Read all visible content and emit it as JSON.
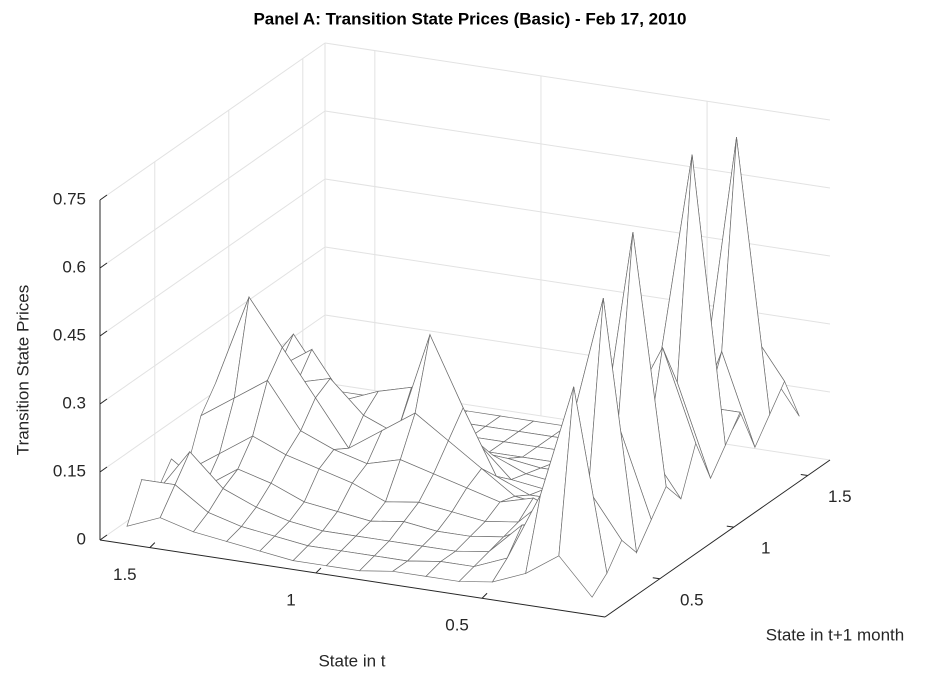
{
  "chart_data": {
    "type": "surface",
    "title": "Panel A:  Transition State Prices (Basic) - Feb 17, 2010",
    "xlabel": "State in t",
    "ylabel": "State in t+1 month",
    "zlabel": "Transition State Prices",
    "x": [
      0.2,
      0.3,
      0.4,
      0.5,
      0.6,
      0.7,
      0.8,
      0.9,
      1.0,
      1.1,
      1.2,
      1.3,
      1.4,
      1.5,
      1.6
    ],
    "y": [
      0.2,
      0.3,
      0.4,
      0.5,
      0.6,
      0.7,
      0.8,
      0.9,
      1.0,
      1.1,
      1.2,
      1.3,
      1.4,
      1.5,
      1.6
    ],
    "z": [
      [
        0.02,
        0.05,
        0.1,
        0.05,
        0.1,
        0.15,
        0.1,
        0.2,
        0.1,
        0.15,
        0.2,
        0.1,
        0.15,
        0.2,
        0.1
      ],
      [
        0.1,
        0.45,
        0.2,
        0.6,
        0.3,
        0.7,
        0.2,
        0.4,
        0.3,
        0.78,
        0.2,
        0.3,
        0.75,
        0.3,
        0.2
      ],
      [
        0.05,
        0.2,
        0.1,
        0.3,
        0.15,
        0.2,
        0.1,
        0.25,
        0.1,
        0.3,
        0.15,
        0.1,
        0.2,
        0.1,
        0.05
      ],
      [
        0.02,
        0.05,
        0.1,
        0.08,
        0.12,
        0.05,
        0.1,
        0.05,
        0.06,
        0.05,
        0.04,
        0.03,
        0.02,
        0.02,
        0.01
      ],
      [
        0.01,
        0.02,
        0.03,
        0.04,
        0.05,
        0.08,
        0.04,
        0.03,
        0.02,
        0.02,
        0.01,
        0.01,
        0.01,
        0,
        0
      ],
      [
        0.01,
        0.02,
        0.02,
        0.03,
        0.04,
        0.06,
        0.05,
        0.03,
        0.02,
        0.01,
        0.01,
        0,
        0,
        0,
        0
      ],
      [
        0.01,
        0.01,
        0.02,
        0.03,
        0.05,
        0.08,
        0.1,
        0.06,
        0.03,
        0.02,
        0.01,
        0,
        0,
        0,
        0
      ],
      [
        0,
        0.01,
        0.02,
        0.04,
        0.06,
        0.1,
        0.15,
        0.2,
        0.1,
        0.05,
        0.02,
        0,
        0,
        0,
        0
      ],
      [
        0,
        0.01,
        0.02,
        0.03,
        0.05,
        0.12,
        0.2,
        0.35,
        0.15,
        0.06,
        0.02,
        0,
        0,
        0,
        0
      ],
      [
        0,
        0.01,
        0.02,
        0.04,
        0.08,
        0.1,
        0.15,
        0.12,
        0.2,
        0.1,
        0.03,
        0,
        0,
        0,
        0
      ],
      [
        0.01,
        0.02,
        0.03,
        0.05,
        0.1,
        0.12,
        0.1,
        0.15,
        0.18,
        0.12,
        0.05,
        0.01,
        0,
        0,
        0
      ],
      [
        0.02,
        0.03,
        0.05,
        0.08,
        0.12,
        0.15,
        0.2,
        0.22,
        0.15,
        0.1,
        0.05,
        0.02,
        0,
        0,
        0
      ],
      [
        0.03,
        0.05,
        0.08,
        0.1,
        0.15,
        0.25,
        0.3,
        0.2,
        0.25,
        0.15,
        0.08,
        0.03,
        0.01,
        0,
        0
      ],
      [
        0.05,
        0.1,
        0.15,
        0.05,
        0.1,
        0.2,
        0.4,
        0.3,
        0.2,
        0.25,
        0.1,
        0.05,
        0.02,
        0,
        0
      ],
      [
        0.02,
        0.1,
        0.05,
        0.1,
        0.05,
        0.15,
        0.2,
        0.15,
        0.1,
        0.15,
        0.05,
        0.02,
        0,
        0,
        0
      ]
    ],
    "color": "#ffffff",
    "edgecolor": "#6e6e6e",
    "xlim": [
      0.13,
      1.65
    ],
    "ylim": [
      0.13,
      1.65
    ],
    "zlim": [
      0,
      0.75
    ],
    "xticks": [
      1.5,
      1,
      0.5
    ],
    "yticks": [
      0.5,
      1,
      1.5
    ],
    "zticks": [
      0,
      0.15,
      0.3,
      0.45,
      0.6,
      0.75
    ],
    "grid": true
  }
}
